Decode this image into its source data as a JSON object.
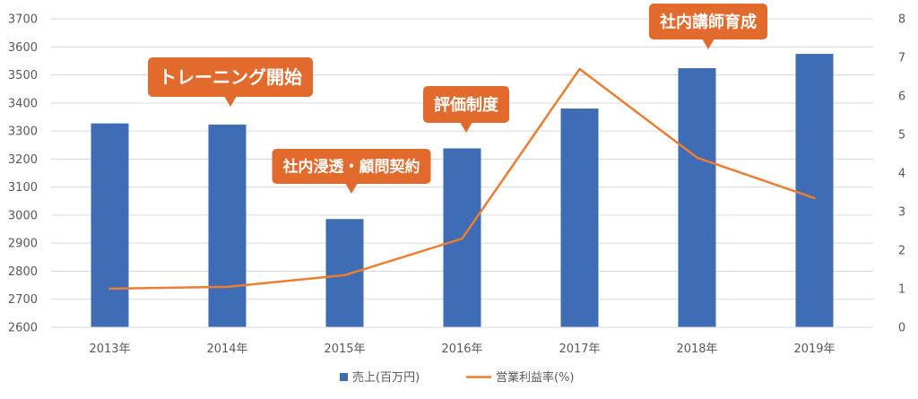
{
  "chart_data": {
    "type": "bar",
    "categories": [
      "2013年",
      "2014年",
      "2015年",
      "2016年",
      "2017年",
      "2018年",
      "2019年"
    ],
    "series": [
      {
        "name": "売上(百万円)",
        "type": "bar",
        "axis": "left",
        "values": [
          3327,
          3323,
          2986,
          3238,
          3380,
          3524,
          3575
        ],
        "color": "#3f6db5"
      },
      {
        "name": "営業利益率(%)",
        "type": "line",
        "axis": "right",
        "values": [
          1.0,
          1.05,
          1.35,
          2.3,
          6.7,
          4.4,
          3.35
        ],
        "color": "#ed7d31"
      }
    ],
    "y_left": {
      "min": 2600,
      "max": 3700,
      "ticks": [
        "2600",
        "2700",
        "2800",
        "2900",
        "3000",
        "3100",
        "3200",
        "3300",
        "3400",
        "3500",
        "3600",
        "3700"
      ]
    },
    "y_right": {
      "min": 0,
      "max": 8,
      "ticks": [
        "0",
        "1",
        "2",
        "3",
        "4",
        "5",
        "6",
        "7",
        "8"
      ]
    },
    "grid": true,
    "legend_position": "bottom",
    "annotations": [
      {
        "text": "トレーニング開始",
        "category_index": 1
      },
      {
        "text": "社内浸透・顧問契約",
        "category_index": 2
      },
      {
        "text": "評価制度",
        "category_index": 3
      },
      {
        "text": "社内講師育成",
        "category_index": 5
      }
    ],
    "callout_color": "#e26a2c"
  }
}
